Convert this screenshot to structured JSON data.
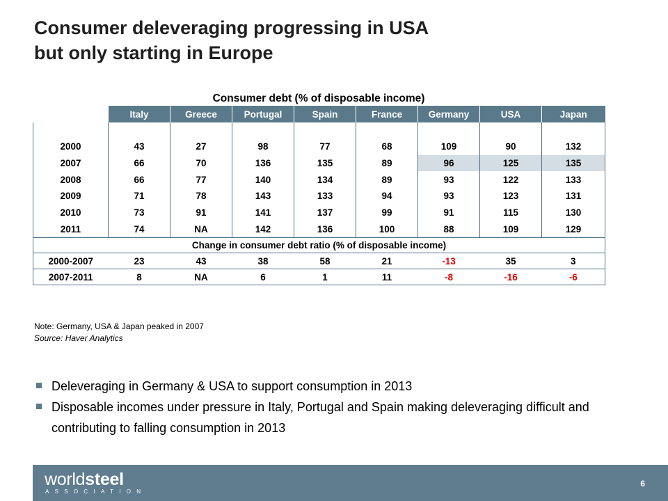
{
  "title": {
    "line1": "Consumer deleveraging progressing in USA",
    "line2": "but only starting in Europe"
  },
  "table": {
    "caption": "Consumer debt (% of disposable income)",
    "columns": [
      "Italy",
      "Greece",
      "Portugal",
      "Spain",
      "France",
      "Germany",
      "USA",
      "Japan"
    ],
    "rows": [
      {
        "year": "2000",
        "values": [
          "43",
          "27",
          "98",
          "77",
          "68",
          "109",
          "90",
          "132"
        ]
      },
      {
        "year": "2007",
        "values": [
          "66",
          "70",
          "136",
          "135",
          "89",
          "96",
          "125",
          "135"
        ]
      },
      {
        "year": "2008",
        "values": [
          "66",
          "77",
          "140",
          "134",
          "89",
          "93",
          "122",
          "133"
        ]
      },
      {
        "year": "2009",
        "values": [
          "71",
          "78",
          "143",
          "133",
          "94",
          "93",
          "123",
          "131"
        ]
      },
      {
        "year": "2010",
        "values": [
          "73",
          "91",
          "141",
          "137",
          "99",
          "91",
          "115",
          "130"
        ]
      },
      {
        "year": "2011",
        "values": [
          "74",
          "NA",
          "142",
          "136",
          "100",
          "88",
          "109",
          "129"
        ]
      }
    ],
    "change_title": "Change in consumer debt ratio (% of disposable income)",
    "change_rows": [
      {
        "period": "2000-2007",
        "values": [
          "23",
          "43",
          "38",
          "58",
          "21",
          "-13",
          "35",
          "3"
        ]
      },
      {
        "period": "2007-2011",
        "values": [
          "8",
          "NA",
          "6",
          "1",
          "11",
          "-8",
          "-16",
          "-6"
        ]
      }
    ],
    "highlight_color": "#d4dde3",
    "negative_color": "#e00000"
  },
  "note": {
    "line1": "Note: Germany, USA & Japan peaked in 2007",
    "source": "Source: Haver Analytics"
  },
  "bullets": [
    "Deleveraging in Germany & USA to support consumption in 2013",
    "Disposable incomes under pressure in Italy, Portugal and Spain making deleveraging difficult and contributing to falling consumption in 2013"
  ],
  "footer": {
    "logo_light": "world",
    "logo_heavy": "steel",
    "logo_sub": "ASSOCIATION",
    "page_number": "6",
    "bar_color": "#5f7d8f"
  }
}
